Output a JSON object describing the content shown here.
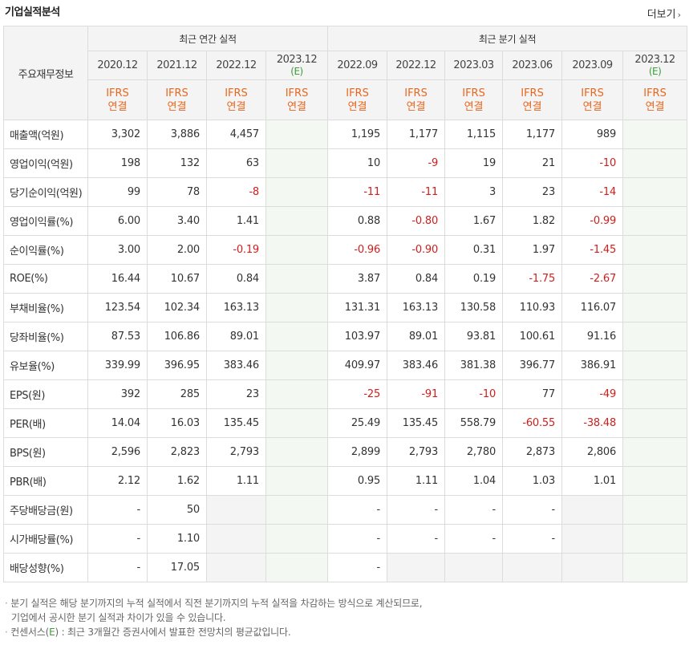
{
  "title": "기업실적분석",
  "more_label": "더보기",
  "header": {
    "corner_label": "주요재무정보",
    "annual_group_label": "최근 연간 실적",
    "quarter_group_label": "최근 분기 실적",
    "annual_dates": [
      "2020.12",
      "2021.12",
      "2022.12",
      "2023.12"
    ],
    "quarter_dates": [
      "2022.09",
      "2022.12",
      "2023.03",
      "2023.06",
      "2023.09",
      "2023.12"
    ],
    "estimate_mark": "(E)",
    "ifrs_line1": "IFRS",
    "ifrs_line2": "연결"
  },
  "rows": [
    {
      "label": "매출액(억원)",
      "values": [
        "3,302",
        "3,886",
        "4,457",
        "",
        "1,195",
        "1,177",
        "1,115",
        "1,177",
        "989",
        ""
      ]
    },
    {
      "label": "영업이익(억원)",
      "values": [
        "198",
        "132",
        "63",
        "",
        "10",
        "-9",
        "19",
        "21",
        "-10",
        ""
      ]
    },
    {
      "label": "당기순이익(억원)",
      "values": [
        "99",
        "78",
        "-8",
        "",
        "-11",
        "-11",
        "3",
        "23",
        "-14",
        ""
      ]
    },
    {
      "label": "영업이익률(%)",
      "values": [
        "6.00",
        "3.40",
        "1.41",
        "",
        "0.88",
        "-0.80",
        "1.67",
        "1.82",
        "-0.99",
        ""
      ]
    },
    {
      "label": "순이익률(%)",
      "values": [
        "3.00",
        "2.00",
        "-0.19",
        "",
        "-0.96",
        "-0.90",
        "0.31",
        "1.97",
        "-1.45",
        ""
      ]
    },
    {
      "label": "ROE(%)",
      "values": [
        "16.44",
        "10.67",
        "0.84",
        "",
        "3.87",
        "0.84",
        "0.19",
        "-1.75",
        "-2.67",
        ""
      ]
    },
    {
      "label": "부채비율(%)",
      "values": [
        "123.54",
        "102.34",
        "163.13",
        "",
        "131.31",
        "163.13",
        "130.58",
        "110.93",
        "116.07",
        ""
      ]
    },
    {
      "label": "당좌비율(%)",
      "values": [
        "87.53",
        "106.86",
        "89.01",
        "",
        "103.97",
        "89.01",
        "93.81",
        "100.61",
        "91.16",
        ""
      ]
    },
    {
      "label": "유보율(%)",
      "values": [
        "339.99",
        "396.95",
        "383.46",
        "",
        "409.97",
        "383.46",
        "381.38",
        "396.77",
        "386.91",
        ""
      ]
    },
    {
      "label": "EPS(원)",
      "values": [
        "392",
        "285",
        "23",
        "",
        "-25",
        "-91",
        "-10",
        "77",
        "-49",
        ""
      ]
    },
    {
      "label": "PER(배)",
      "values": [
        "14.04",
        "16.03",
        "135.45",
        "",
        "25.49",
        "135.45",
        "558.79",
        "-60.55",
        "-38.48",
        ""
      ]
    },
    {
      "label": "BPS(원)",
      "values": [
        "2,596",
        "2,823",
        "2,793",
        "",
        "2,899",
        "2,793",
        "2,780",
        "2,873",
        "2,806",
        ""
      ]
    },
    {
      "label": "PBR(배)",
      "values": [
        "2.12",
        "1.62",
        "1.11",
        "",
        "0.95",
        "1.11",
        "1.04",
        "1.03",
        "1.01",
        ""
      ]
    },
    {
      "label": "주당배당금(원)",
      "values": [
        "-",
        "50",
        "",
        "",
        "-",
        "-",
        "-",
        "-",
        "",
        ""
      ]
    },
    {
      "label": "시가배당률(%)",
      "values": [
        "-",
        "1.10",
        "",
        "",
        "-",
        "-",
        "-",
        "-",
        "",
        ""
      ]
    },
    {
      "label": "배당성향(%)",
      "values": [
        "-",
        "17.05",
        "",
        "",
        "-",
        "",
        "",
        "",
        "",
        ""
      ]
    }
  ],
  "notes": {
    "line1": "분기 실적은 해당 분기까지의 누적 실적에서 직전 분기까지의 누적 실적을 차감하는 방식으로 계산되므로,",
    "line2": "기업에서 공시한 분기 실적과 차이가 있을 수 있습니다.",
    "line3_prefix": "컨센서스(",
    "line3_mark": "E",
    "line3_suffix": ") : 최근 3개월간 증권사에서 발표한 전망치의 평균값입니다."
  },
  "colors": {
    "negative": "#d41c1c",
    "ifrs": "#e8671f",
    "estimate": "#3d9c3a",
    "header_bg": "#f4f4f4",
    "estimate_bg": "#f4f8f2"
  }
}
